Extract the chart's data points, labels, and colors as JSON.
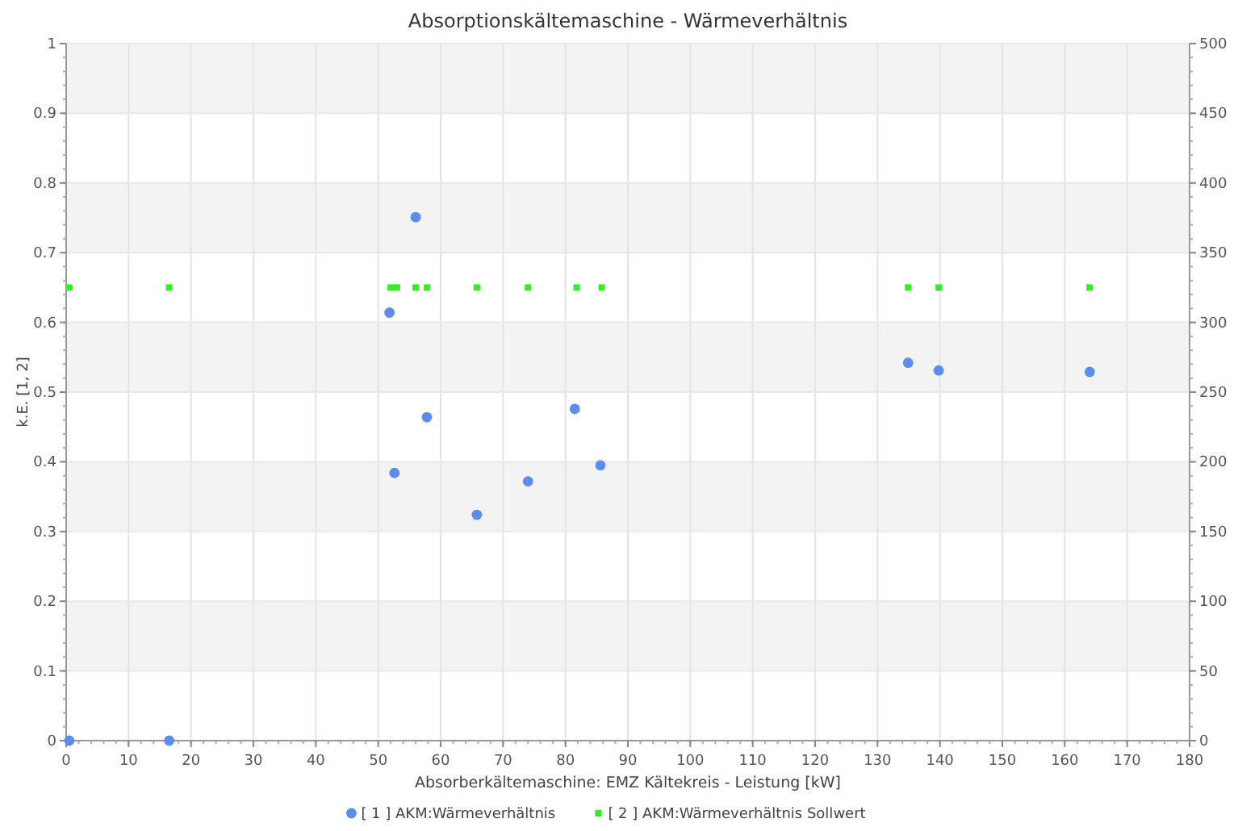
{
  "chart_data": {
    "type": "scatter",
    "title": "Absorptionskältemaschine - Wärmeverhältnis",
    "xlabel": "Absorberkältemaschine: EMZ Kältekreis - Leistung [kW]",
    "ylabel": "k.E. [1, 2]",
    "xlim": [
      0,
      180
    ],
    "xticks": [
      0,
      10,
      20,
      30,
      40,
      50,
      60,
      70,
      80,
      90,
      100,
      110,
      120,
      130,
      140,
      150,
      160,
      170,
      180
    ],
    "ylim": [
      0,
      1
    ],
    "yticks": [
      0,
      0.1,
      0.2,
      0.3,
      0.4,
      0.5,
      0.6,
      0.7,
      0.8,
      0.9,
      1
    ],
    "y2lim": [
      0,
      500
    ],
    "y2ticks": [
      0,
      50,
      100,
      150,
      200,
      250,
      300,
      350,
      400,
      450,
      500
    ],
    "grid": true,
    "legend": "bottom",
    "series": [
      {
        "name": "[ 1 ] AKM:Wärmeverhältnis",
        "color": "#5b8def",
        "marker": "circle",
        "x": [
          0.5,
          16.5,
          51.8,
          52.6,
          56,
          57.8,
          65.8,
          74,
          81.5,
          85.6,
          134.9,
          139.8,
          164
        ],
        "values": [
          0,
          0,
          0.614,
          0.384,
          0.751,
          0.464,
          0.324,
          0.372,
          0.476,
          0.395,
          0.542,
          0.531,
          0.529
        ]
      },
      {
        "name": "[ 2 ] AKM:Wärmeverhältnis Sollwert",
        "color": "#33ee22",
        "marker": "square",
        "x": [
          0.5,
          16.5,
          52,
          53,
          56,
          57.8,
          65.8,
          74,
          81.8,
          85.8,
          134.9,
          139.8,
          164
        ],
        "values": [
          0.65,
          0.65,
          0.65,
          0.65,
          0.65,
          0.65,
          0.65,
          0.65,
          0.65,
          0.65,
          0.65,
          0.65,
          0.65
        ]
      }
    ]
  }
}
